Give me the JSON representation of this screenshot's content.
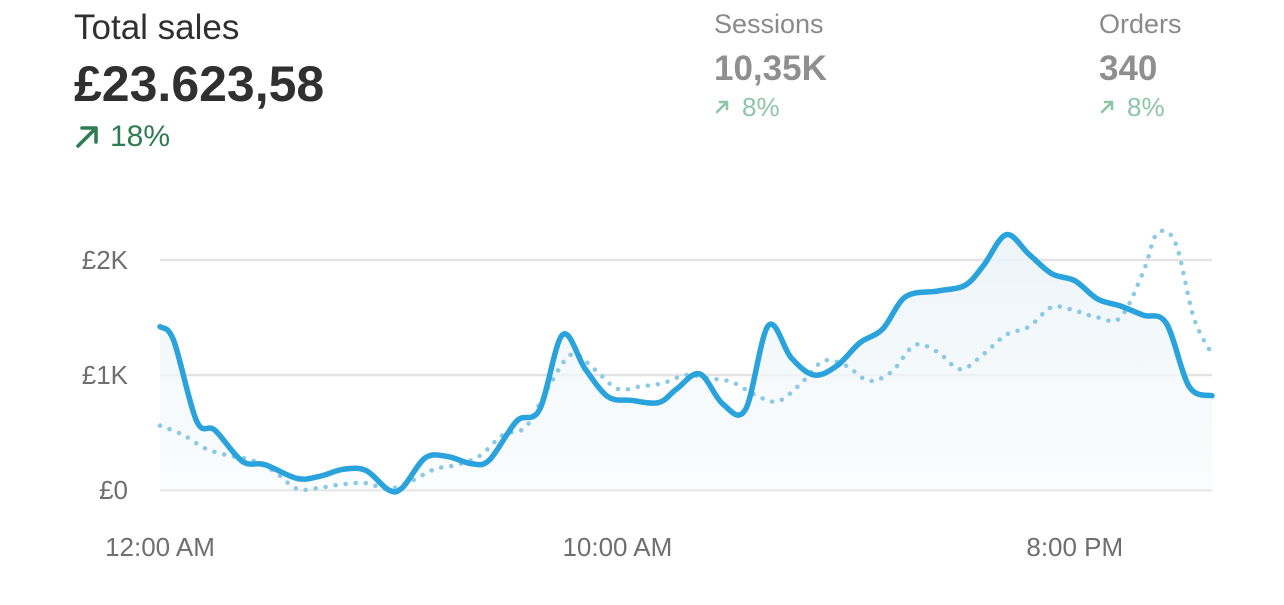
{
  "metrics": {
    "total_sales": {
      "label": "Total sales",
      "value": "£23.623,58",
      "change": "18%"
    },
    "sessions": {
      "label": "Sessions",
      "value": "10,35K",
      "change": "8%"
    },
    "orders": {
      "label": "Orders",
      "value": "340",
      "change": "8%"
    }
  },
  "colors": {
    "primary_line": "#2aa3dc",
    "comparison_line": "#8bcae6",
    "positive": "#2f7d52",
    "positive_muted": "#8cc5a8",
    "grid": "#e3e3e3"
  },
  "chart_data": {
    "type": "line",
    "title": "",
    "xlabel": "",
    "ylabel": "",
    "ylim": [
      0,
      2000
    ],
    "y_ticks": [
      {
        "value": 0,
        "label": "£0"
      },
      {
        "value": 1000,
        "label": "£1K"
      },
      {
        "value": 2000,
        "label": "£2K"
      }
    ],
    "x_ticks": [
      {
        "value": 0,
        "label": "12:00 AM"
      },
      {
        "value": 10,
        "label": "10:00 AM"
      },
      {
        "value": 20,
        "label": "8:00 PM"
      }
    ],
    "xlim": [
      0,
      23
    ],
    "grid": true,
    "fill_under_primary": true,
    "series": [
      {
        "style": "solid",
        "points": [
          [
            0,
            1420
          ],
          [
            0.3,
            1300
          ],
          [
            0.8,
            600
          ],
          [
            1.2,
            520
          ],
          [
            1.8,
            250
          ],
          [
            2.3,
            220
          ],
          [
            3.0,
            100
          ],
          [
            3.5,
            120
          ],
          [
            4.0,
            180
          ],
          [
            4.5,
            170
          ],
          [
            5.0,
            0
          ],
          [
            5.3,
            20
          ],
          [
            5.8,
            280
          ],
          [
            6.3,
            290
          ],
          [
            6.8,
            230
          ],
          [
            7.2,
            260
          ],
          [
            7.8,
            600
          ],
          [
            8.3,
            700
          ],
          [
            8.8,
            1350
          ],
          [
            9.3,
            1050
          ],
          [
            9.8,
            810
          ],
          [
            10.3,
            780
          ],
          [
            10.9,
            760
          ],
          [
            11.3,
            880
          ],
          [
            11.8,
            1010
          ],
          [
            12.3,
            750
          ],
          [
            12.8,
            700
          ],
          [
            13.3,
            1430
          ],
          [
            13.8,
            1150
          ],
          [
            14.3,
            1000
          ],
          [
            14.8,
            1080
          ],
          [
            15.3,
            1280
          ],
          [
            15.8,
            1400
          ],
          [
            16.3,
            1680
          ],
          [
            17.0,
            1730
          ],
          [
            17.6,
            1780
          ],
          [
            18.0,
            1950
          ],
          [
            18.5,
            2220
          ],
          [
            19.0,
            2050
          ],
          [
            19.5,
            1880
          ],
          [
            20.0,
            1820
          ],
          [
            20.5,
            1660
          ],
          [
            21.0,
            1600
          ],
          [
            21.5,
            1520
          ],
          [
            22.0,
            1450
          ],
          [
            22.5,
            900
          ],
          [
            23.0,
            820
          ]
        ]
      },
      {
        "style": "dotted",
        "points": [
          [
            0,
            560
          ],
          [
            0.5,
            480
          ],
          [
            1.0,
            360
          ],
          [
            1.5,
            300
          ],
          [
            2.0,
            260
          ],
          [
            2.5,
            160
          ],
          [
            3.0,
            10
          ],
          [
            3.5,
            20
          ],
          [
            4.0,
            50
          ],
          [
            4.5,
            60
          ],
          [
            5.0,
            10
          ],
          [
            5.5,
            80
          ],
          [
            6.0,
            180
          ],
          [
            6.5,
            220
          ],
          [
            7.0,
            300
          ],
          [
            7.5,
            480
          ],
          [
            8.0,
            550
          ],
          [
            8.5,
            900
          ],
          [
            9.0,
            1180
          ],
          [
            9.5,
            1050
          ],
          [
            10.0,
            880
          ],
          [
            10.5,
            900
          ],
          [
            11.0,
            930
          ],
          [
            11.5,
            1000
          ],
          [
            12.0,
            970
          ],
          [
            12.5,
            940
          ],
          [
            13.0,
            830
          ],
          [
            13.5,
            770
          ],
          [
            14.0,
            920
          ],
          [
            14.5,
            1120
          ],
          [
            15.0,
            1080
          ],
          [
            15.5,
            950
          ],
          [
            16.0,
            1030
          ],
          [
            16.5,
            1260
          ],
          [
            17.0,
            1200
          ],
          [
            17.5,
            1050
          ],
          [
            18.0,
            1180
          ],
          [
            18.5,
            1350
          ],
          [
            19.0,
            1420
          ],
          [
            19.5,
            1590
          ],
          [
            20.0,
            1560
          ],
          [
            20.5,
            1500
          ],
          [
            21.0,
            1500
          ],
          [
            21.5,
            1900
          ],
          [
            21.8,
            2230
          ],
          [
            22.2,
            2150
          ],
          [
            22.6,
            1500
          ],
          [
            23.0,
            1180
          ]
        ]
      }
    ]
  }
}
